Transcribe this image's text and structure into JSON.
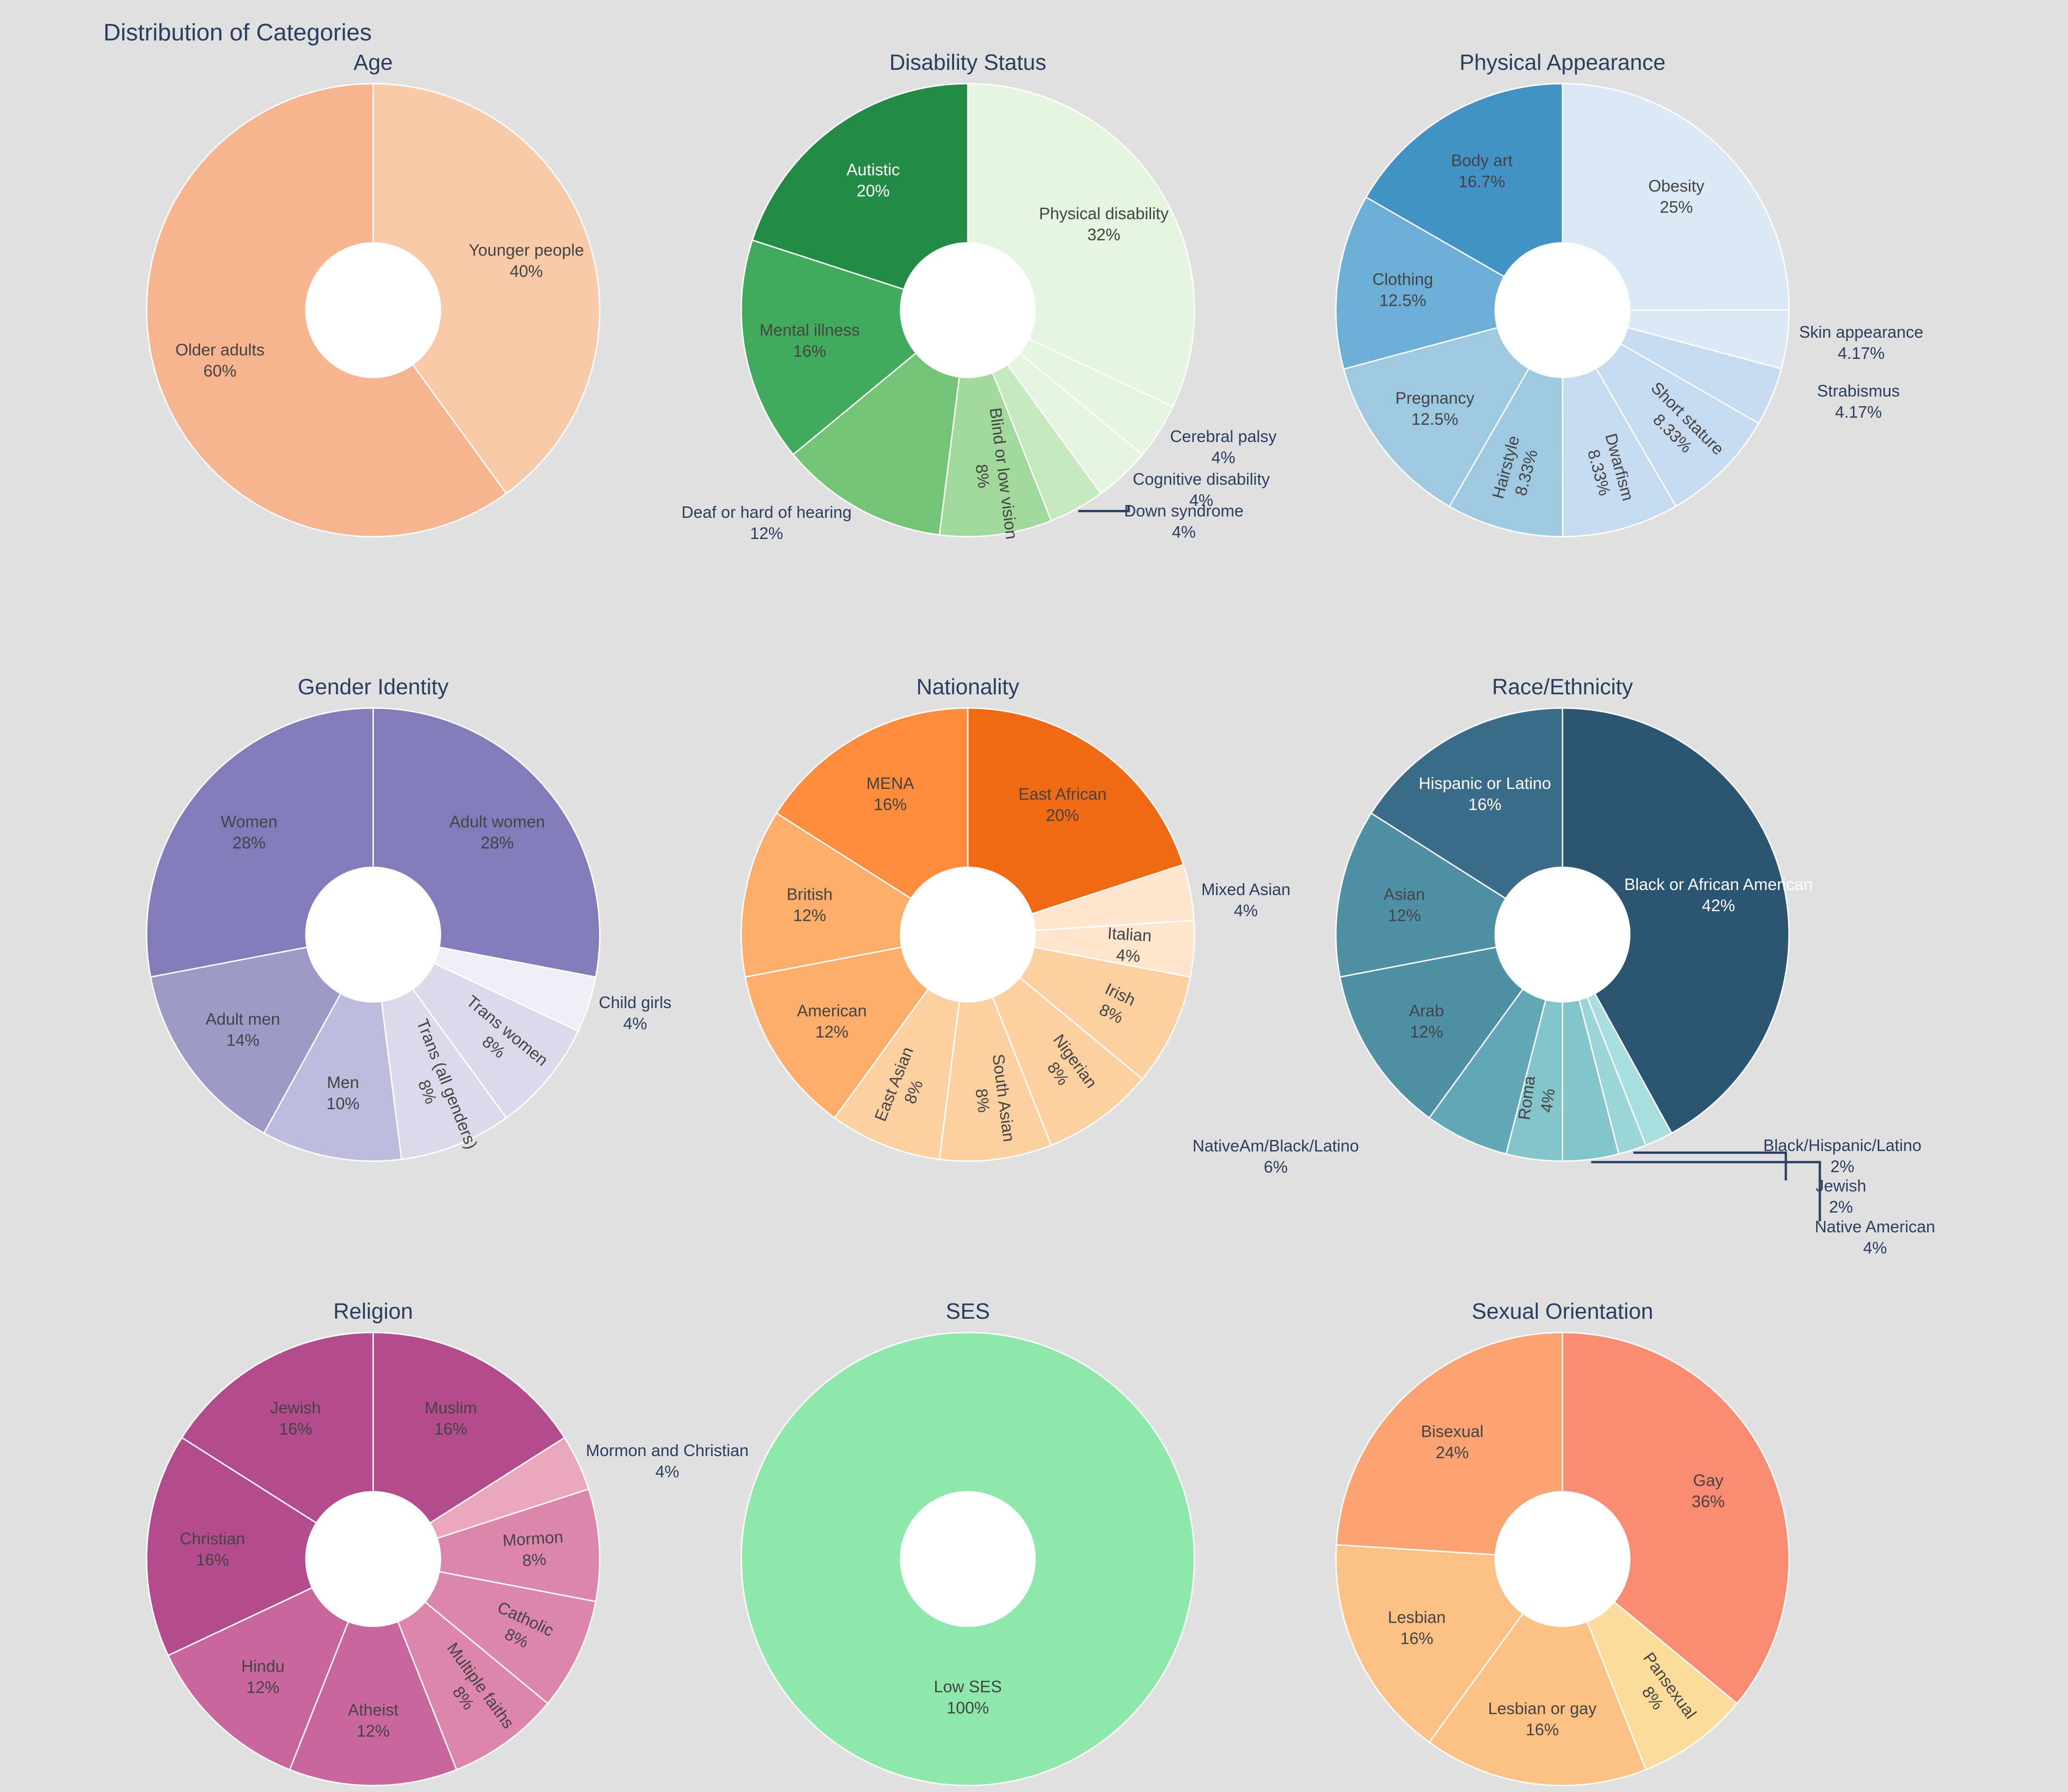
{
  "chart_data": {
    "type": "pie",
    "title": "Distribution of Categories",
    "hole": 0.3,
    "charts": [
      {
        "title": "Age",
        "colors": [
          "#f6b48f",
          "#f9caa8"
        ],
        "slices": [
          {
            "label": "Older adults",
            "value": 60,
            "pct": "60%"
          },
          {
            "label": "Younger people",
            "value": 40,
            "pct": "40%"
          }
        ]
      },
      {
        "title": "Disability Status",
        "colors": [
          "#238b45",
          "#41ab5d",
          "#74c476",
          "#a1d99b",
          "#c7e9c0",
          "#e5f5e0",
          "#e5f5e0",
          "#e5f5e0"
        ],
        "slices": [
          {
            "label": "Autistic",
            "value": 20,
            "pct": "20%"
          },
          {
            "label": "Mental illness",
            "value": 16,
            "pct": "16%"
          },
          {
            "label": "Deaf or hard of hearing",
            "value": 12,
            "pct": "12%"
          },
          {
            "label": "Blind or low vision",
            "value": 8,
            "pct": "8%"
          },
          {
            "label": "Down syndrome",
            "value": 4,
            "pct": "4%"
          },
          {
            "label": "Cognitive disability",
            "value": 4,
            "pct": "4%"
          },
          {
            "label": "Cerebral palsy",
            "value": 4,
            "pct": "4%"
          },
          {
            "label": "Physical disability",
            "value": 32,
            "pct": "32%"
          }
        ]
      },
      {
        "title": "Physical Appearance",
        "colors": [
          "#4292c6",
          "#6baed6",
          "#9ecae1",
          "#9ecae1",
          "#c6dbef",
          "#c6dbef",
          "#c6dbef",
          "#dbe8f5",
          "#dbe8f5"
        ],
        "slices": [
          {
            "label": "Body art",
            "value": 16.7,
            "pct": "16.7%"
          },
          {
            "label": "Clothing",
            "value": 12.5,
            "pct": "12.5%"
          },
          {
            "label": "Pregnancy",
            "value": 12.5,
            "pct": "12.5%"
          },
          {
            "label": "Hairstyle",
            "value": 8.33,
            "pct": "8.33%"
          },
          {
            "label": "Dwarfism",
            "value": 8.33,
            "pct": "8.33%"
          },
          {
            "label": "Short stature",
            "value": 8.33,
            "pct": "8.33%"
          },
          {
            "label": "Strabismus",
            "value": 4.17,
            "pct": "4.17%"
          },
          {
            "label": "Skin appearance",
            "value": 4.17,
            "pct": "4.17%"
          },
          {
            "label": "Obesity",
            "value": 25,
            "pct": "25%"
          }
        ]
      },
      {
        "title": "Gender Identity",
        "colors": [
          "#807dba",
          "#9e9ac8",
          "#bcbddc",
          "#dadaeb",
          "#dadaeb",
          "#efedf5",
          "#807dba"
        ],
        "slices": [
          {
            "label": "Women",
            "value": 28,
            "pct": "28%"
          },
          {
            "label": "Adult men",
            "value": 14,
            "pct": "14%"
          },
          {
            "label": "Men",
            "value": 10,
            "pct": "10%"
          },
          {
            "label": "Trans (all genders)",
            "value": 8,
            "pct": "8%"
          },
          {
            "label": "Trans women",
            "value": 8,
            "pct": "8%"
          },
          {
            "label": "Child girls",
            "value": 4,
            "pct": "4%"
          },
          {
            "label": "Adult women",
            "value": 28,
            "pct": "28%"
          }
        ]
      },
      {
        "title": "Nationality",
        "colors": [
          "#fd8d3c",
          "#fdae6b",
          "#fdae6b",
          "#fdd0a2",
          "#fdd0a2",
          "#fdd0a2",
          "#fdd0a2",
          "#fee6ce",
          "#fee6ce",
          "#f16913"
        ],
        "slices": [
          {
            "label": "MENA",
            "value": 16,
            "pct": "16%"
          },
          {
            "label": "British",
            "value": 12,
            "pct": "12%"
          },
          {
            "label": "American",
            "value": 12,
            "pct": "12%"
          },
          {
            "label": "East Asian",
            "value": 8,
            "pct": "8%"
          },
          {
            "label": "South Asian",
            "value": 8,
            "pct": "8%"
          },
          {
            "label": "Nigerian",
            "value": 8,
            "pct": "8%"
          },
          {
            "label": "Irish",
            "value": 8,
            "pct": "8%"
          },
          {
            "label": "Italian",
            "value": 4,
            "pct": "4%"
          },
          {
            "label": "Mixed Asian",
            "value": 4,
            "pct": "4%"
          },
          {
            "label": "East African",
            "value": 20,
            "pct": "20%"
          }
        ]
      },
      {
        "title": "Race/Ethnicity",
        "colors": [
          "#3b6d8a",
          "#4e90a6",
          "#4e90a6",
          "#62a7b7",
          "#84c5cb",
          "#84c5cb",
          "#9ad6d6",
          "#a8dede",
          "#2a5674"
        ],
        "slices": [
          {
            "label": "Hispanic or Latino",
            "value": 16,
            "pct": "16%"
          },
          {
            "label": "Asian",
            "value": 12,
            "pct": "12%"
          },
          {
            "label": "Arab",
            "value": 12,
            "pct": "12%"
          },
          {
            "label": "NativeAm/Black/Latino",
            "value": 6,
            "pct": "6%"
          },
          {
            "label": "Roma",
            "value": 4,
            "pct": "4%"
          },
          {
            "label": "Native American",
            "value": 4,
            "pct": "4%"
          },
          {
            "label": "Jewish",
            "value": 2,
            "pct": "2%"
          },
          {
            "label": "Black/Hispanic/Latino",
            "value": 2,
            "pct": "2%"
          },
          {
            "label": "Black or African American",
            "value": 42,
            "pct": "42%"
          }
        ]
      },
      {
        "title": "Religion",
        "colors": [
          "#b24c8c",
          "#b24c8c",
          "#c9679d",
          "#c9679d",
          "#dc85ad",
          "#dc85ad",
          "#dc85ad",
          "#eaa7bb",
          "#b24c8c"
        ],
        "slices": [
          {
            "label": "Jewish",
            "value": 16,
            "pct": "16%"
          },
          {
            "label": "Christian",
            "value": 16,
            "pct": "16%"
          },
          {
            "label": "Hindu",
            "value": 12,
            "pct": "12%"
          },
          {
            "label": "Atheist",
            "value": 12,
            "pct": "12%"
          },
          {
            "label": "Multiple faiths",
            "value": 8,
            "pct": "8%"
          },
          {
            "label": "Catholic",
            "value": 8,
            "pct": "8%"
          },
          {
            "label": "Mormon",
            "value": 8,
            "pct": "8%"
          },
          {
            "label": "Mormon and Christian",
            "value": 4,
            "pct": "4%"
          },
          {
            "label": "Muslim",
            "value": 16,
            "pct": "16%"
          }
        ]
      },
      {
        "title": "SES",
        "colors": [
          "#8ce8ab"
        ],
        "slices": [
          {
            "label": "Low SES",
            "value": 100,
            "pct": "100%"
          }
        ]
      },
      {
        "title": "Sexual Orientation",
        "colors": [
          "#fca372",
          "#fcc183",
          "#fcc183",
          "#fddc9a",
          "#fb8a72"
        ],
        "slices": [
          {
            "label": "Bisexual",
            "value": 24,
            "pct": "24%"
          },
          {
            "label": "Lesbian",
            "value": 16,
            "pct": "16%"
          },
          {
            "label": "Lesbian or gay",
            "value": 16,
            "pct": "16%"
          },
          {
            "label": "Pansexual",
            "value": 8,
            "pct": "8%"
          },
          {
            "label": "Gay",
            "value": 36,
            "pct": "36%"
          }
        ]
      }
    ]
  }
}
